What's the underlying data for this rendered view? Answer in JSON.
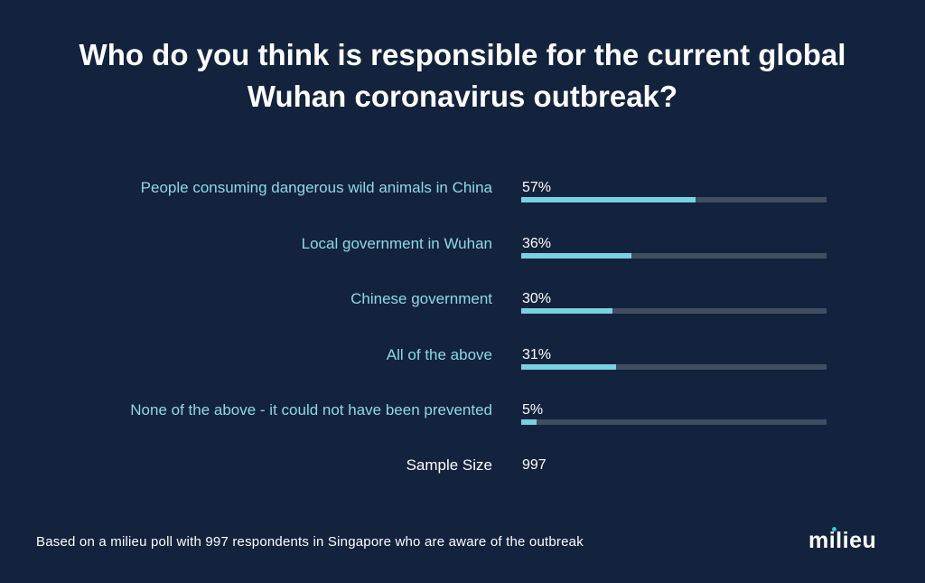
{
  "title_line1": "Who do you think is responsible for the current global",
  "title_line2": "Wuhan coronavirus outbreak?",
  "chart_data": {
    "type": "bar",
    "orientation": "horizontal",
    "categories": [
      "People consuming dangerous wild animals in China",
      "Local government in Wuhan",
      "Chinese government",
      "All of the above",
      "None of the above - it could not have been prevented"
    ],
    "values": [
      57,
      36,
      30,
      31,
      5
    ],
    "value_labels": [
      "57%",
      "36%",
      "30%",
      "31%",
      "5%"
    ],
    "unit": "%",
    "xlim": [
      0,
      100
    ],
    "colors": {
      "fill": "#78d2e0",
      "track": "#414d61",
      "label": "#8ed8e6"
    }
  },
  "sample": {
    "label": "Sample Size",
    "value": "997"
  },
  "footnote": "Based on a milieu poll with 997 respondents in Singapore who are aware of the outbreak",
  "logo": "milieu",
  "colors": {
    "background": "#13233d",
    "accent": "#3fc3d9"
  }
}
